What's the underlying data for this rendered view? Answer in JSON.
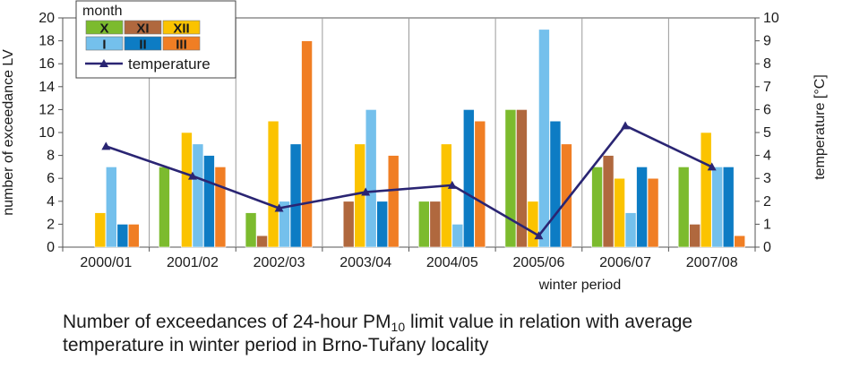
{
  "chart_data": {
    "type": "bar",
    "categories": [
      "2000/01",
      "2001/02",
      "2002/03",
      "2003/04",
      "2004/05",
      "2005/06",
      "2006/07",
      "2007/08"
    ],
    "xlabel": "winter period",
    "ylabel": "number of exceedance LV",
    "y2label": "temperature [°C]",
    "ylim": [
      0,
      20
    ],
    "yticks": [
      "0",
      "2",
      "4",
      "6",
      "8",
      "10",
      "12",
      "14",
      "16",
      "18",
      "20"
    ],
    "y2lim": [
      0,
      10
    ],
    "y2ticks": [
      "0",
      "1",
      "2",
      "3",
      "4",
      "5",
      "6",
      "7",
      "8",
      "9",
      "10"
    ],
    "grid": "vertical lines between winter periods",
    "legend": {
      "title": "month",
      "placement": "top-left",
      "line_label": "temperature"
    },
    "series": [
      {
        "name": "X",
        "color": "#7cbb2e",
        "values": [
          0,
          7,
          3,
          0,
          4,
          12,
          7,
          7
        ]
      },
      {
        "name": "XI",
        "color": "#b0683e",
        "values": [
          0,
          0,
          1,
          4,
          4,
          12,
          8,
          2
        ]
      },
      {
        "name": "XII",
        "color": "#fbc300",
        "values": [
          3,
          10,
          11,
          9,
          9,
          4,
          6,
          10
        ]
      },
      {
        "name": "I",
        "color": "#74c0ec",
        "values": [
          7,
          9,
          4,
          12,
          2,
          19,
          3,
          7
        ]
      },
      {
        "name": "II",
        "color": "#0d7cc4",
        "values": [
          2,
          8,
          9,
          4,
          12,
          11,
          7,
          7
        ]
      },
      {
        "name": "III",
        "color": "#f07e24",
        "values": [
          2,
          7,
          18,
          8,
          11,
          9,
          6,
          1
        ]
      }
    ],
    "line_series": {
      "name": "temperature",
      "color": "#2a2573",
      "axis": "right",
      "values": [
        4.4,
        3.1,
        1.7,
        2.4,
        2.7,
        0.5,
        5.3,
        3.5
      ]
    }
  },
  "caption": {
    "line1_before": "Number of exceedances of 24-hour PM",
    "line1_sub": "10",
    "line1_after": " limit value in relation with average",
    "line2": "temperature in winter period in Brno-Tuřany locality"
  }
}
